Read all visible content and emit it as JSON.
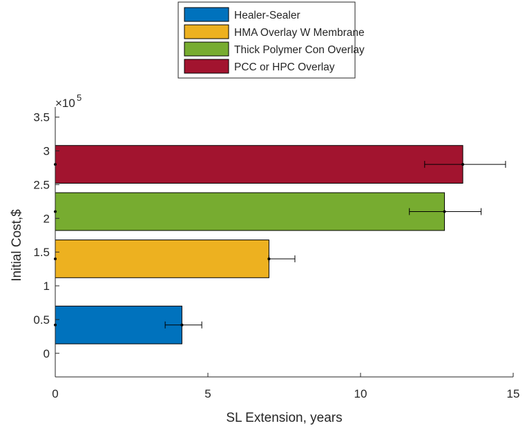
{
  "chart_data": {
    "type": "bar",
    "orientation": "horizontal",
    "xlabel": "SL Extension, years",
    "ylabel": "Initial Cost,$",
    "xlim": [
      0,
      15
    ],
    "ylim": [
      -35000,
      365000
    ],
    "y_exponent_label": "×10",
    "y_exponent_power": "5",
    "x_ticks": [
      0,
      5,
      10,
      15
    ],
    "x_tick_labels": [
      "0",
      "5",
      "10",
      "15"
    ],
    "y_ticks": [
      0,
      50000,
      100000,
      150000,
      200000,
      250000,
      300000,
      350000
    ],
    "y_tick_labels": [
      "0",
      "0.5",
      "1",
      "1.5",
      "2",
      "2.5",
      "3",
      "3.5"
    ],
    "legend_position": "top-outside",
    "series": [
      {
        "name": "Healer-Sealer",
        "color": "#0072BD",
        "y_center": 42000,
        "bar_height": 56000,
        "value": 4.15,
        "err_low": 3.6,
        "err_high": 4.8
      },
      {
        "name": "HMA Overlay W Membrane",
        "color": "#EDB120",
        "y_center": 140000,
        "bar_height": 56000,
        "value": 7.0,
        "err_low": 7.0,
        "err_high": 7.85
      },
      {
        "name": "Thick Polymer Con Overlay",
        "color": "#77AC30",
        "y_center": 210000,
        "bar_height": 56000,
        "value": 12.75,
        "err_low": 11.6,
        "err_high": 13.95
      },
      {
        "name": "PCC or HPC Overlay",
        "color": "#A2142F",
        "y_center": 280000,
        "bar_height": 56000,
        "value": 13.35,
        "err_low": 12.1,
        "err_high": 14.75
      }
    ]
  }
}
